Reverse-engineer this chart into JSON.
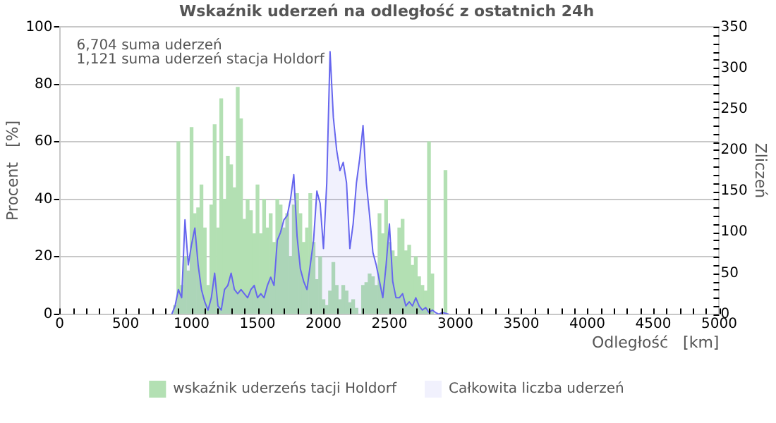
{
  "chart_data": {
    "type": "bar",
    "title": "Wskaźnik uderzeń na odległość z ostatnich 24h",
    "xlabel": "Odległość   [km]",
    "ylabel": "Procent   [%]",
    "y2label": "Zliczeń",
    "annotations": [
      "6,704 suma uderzeń",
      "1,121 suma uderzeń stacja Holdorf"
    ],
    "xlim": [
      0,
      5000
    ],
    "xticks": [
      0,
      {
        "value": 100,
        "label": null
      },
      {
        "value": 200,
        "label": null
      },
      {
        "value": 300,
        "label": null
      },
      {
        "value": 400,
        "label": null
      },
      500,
      {
        "value": 600,
        "label": null
      },
      {
        "value": 700,
        "label": null
      },
      {
        "value": 800,
        "label": null
      },
      {
        "value": 900,
        "label": null
      },
      1000,
      {
        "value": 1100,
        "label": null
      },
      {
        "value": 1200,
        "label": null
      },
      {
        "value": 1300,
        "label": null
      },
      {
        "value": 1400,
        "label": null
      },
      1500,
      {
        "value": 1600,
        "label": null
      },
      {
        "value": 1700,
        "label": null
      },
      {
        "value": 1800,
        "label": null
      },
      {
        "value": 1900,
        "label": null
      },
      2000,
      {
        "value": 2100,
        "label": null
      },
      {
        "value": 2200,
        "label": null
      },
      {
        "value": 2300,
        "label": null
      },
      {
        "value": 2400,
        "label": null
      },
      2500,
      {
        "value": 2600,
        "label": null
      },
      {
        "value": 2700,
        "label": null
      },
      {
        "value": 2800,
        "label": null
      },
      {
        "value": 2900,
        "label": null
      },
      3000,
      {
        "value": 3100,
        "label": null
      },
      {
        "value": 3200,
        "label": null
      },
      {
        "value": 3300,
        "label": null
      },
      {
        "value": 3400,
        "label": null
      },
      3500,
      {
        "value": 3600,
        "label": null
      },
      {
        "value": 3700,
        "label": null
      },
      {
        "value": 3800,
        "label": null
      },
      {
        "value": 3900,
        "label": null
      },
      4000,
      {
        "value": 4100,
        "label": null
      },
      {
        "value": 4200,
        "label": null
      },
      {
        "value": 4300,
        "label": null
      },
      {
        "value": 4400,
        "label": null
      },
      4500,
      {
        "value": 4600,
        "label": null
      },
      {
        "value": 4700,
        "label": null
      },
      {
        "value": 4800,
        "label": null
      },
      {
        "value": 4900,
        "label": null
      },
      5000
    ],
    "ylim": [
      0,
      100
    ],
    "yticks": [
      0,
      20,
      40,
      60,
      80,
      100
    ],
    "y2lim": [
      0,
      350
    ],
    "y2ticks": [
      0,
      {
        "value": 10,
        "label": null
      },
      {
        "value": 20,
        "label": null
      },
      {
        "value": 30,
        "label": null
      },
      {
        "value": 40,
        "label": null
      },
      50,
      {
        "value": 60,
        "label": null
      },
      {
        "value": 70,
        "label": null
      },
      {
        "value": 80,
        "label": null
      },
      {
        "value": 90,
        "label": null
      },
      100,
      {
        "value": 110,
        "label": null
      },
      {
        "value": 120,
        "label": null
      },
      {
        "value": 130,
        "label": null
      },
      {
        "value": 140,
        "label": null
      },
      150,
      {
        "value": 160,
        "label": null
      },
      {
        "value": 170,
        "label": null
      },
      {
        "value": 180,
        "label": null
      },
      {
        "value": 190,
        "label": null
      },
      200,
      {
        "value": 210,
        "label": null
      },
      {
        "value": 220,
        "label": null
      },
      {
        "value": 230,
        "label": null
      },
      {
        "value": 240,
        "label": null
      },
      250,
      {
        "value": 260,
        "label": null
      },
      {
        "value": 270,
        "label": null
      },
      {
        "value": 280,
        "label": null
      },
      {
        "value": 290,
        "label": null
      },
      300,
      {
        "value": 310,
        "label": null
      },
      {
        "value": 320,
        "label": null
      },
      {
        "value": 330,
        "label": null
      },
      {
        "value": 340,
        "label": null
      },
      350
    ],
    "grid": "y",
    "legend": "bottom",
    "series": [
      {
        "name": "wskaźnik uderzeńs tacji Holdorf",
        "color": "#b3e0b3",
        "x": [
          875,
          900,
          925,
          950,
          975,
          1000,
          1025,
          1050,
          1075,
          1100,
          1125,
          1150,
          1175,
          1200,
          1225,
          1250,
          1275,
          1300,
          1325,
          1350,
          1375,
          1400,
          1425,
          1450,
          1475,
          1500,
          1525,
          1550,
          1575,
          1600,
          1625,
          1650,
          1675,
          1700,
          1725,
          1750,
          1775,
          1800,
          1825,
          1850,
          1875,
          1900,
          1925,
          1950,
          1975,
          2000,
          2025,
          2050,
          2075,
          2100,
          2125,
          2150,
          2175,
          2200,
          2225,
          2250,
          2300,
          2325,
          2350,
          2375,
          2400,
          2425,
          2450,
          2475,
          2500,
          2525,
          2550,
          2575,
          2600,
          2625,
          2650,
          2675,
          2700,
          2725,
          2750,
          2775,
          2800,
          2825,
          2925
        ],
        "values": [
          3,
          60,
          10,
          20,
          15,
          65,
          35,
          37,
          45,
          30,
          10,
          38,
          66,
          30,
          75,
          40,
          55,
          52,
          44,
          79,
          68,
          33,
          40,
          36,
          28,
          45,
          28,
          40,
          30,
          35,
          25,
          40,
          38,
          30,
          35,
          20,
          38,
          42,
          35,
          25,
          30,
          42,
          25,
          12,
          20,
          5,
          3,
          8,
          18,
          10,
          5,
          10,
          8,
          4,
          5,
          2,
          10,
          11,
          14,
          13,
          10,
          35,
          28,
          40,
          25,
          22,
          20,
          30,
          33,
          22,
          24,
          17,
          20,
          13,
          10,
          8,
          60,
          14,
          50
        ]
      },
      {
        "name": "Całkowita liczba uderzeń",
        "type": "area",
        "axis": "y2",
        "color": "#6666ee",
        "x": [
          850,
          875,
          900,
          925,
          950,
          975,
          1000,
          1025,
          1050,
          1075,
          1100,
          1125,
          1150,
          1175,
          1200,
          1225,
          1250,
          1275,
          1300,
          1325,
          1350,
          1375,
          1400,
          1425,
          1450,
          1475,
          1500,
          1525,
          1550,
          1575,
          1600,
          1625,
          1650,
          1675,
          1700,
          1725,
          1750,
          1775,
          1800,
          1825,
          1850,
          1875,
          1900,
          1925,
          1950,
          1975,
          2000,
          2025,
          2050,
          2075,
          2100,
          2125,
          2150,
          2175,
          2200,
          2225,
          2250,
          2275,
          2300,
          2325,
          2350,
          2375,
          2400,
          2425,
          2450,
          2475,
          2500,
          2525,
          2550,
          2575,
          2600,
          2625,
          2650,
          2675,
          2700,
          2725,
          2750,
          2775,
          2800,
          2825,
          2850,
          2875,
          2900,
          2950
        ],
        "values": [
          0,
          10,
          30,
          20,
          115,
          60,
          85,
          105,
          60,
          30,
          15,
          5,
          20,
          50,
          10,
          5,
          30,
          35,
          50,
          30,
          25,
          30,
          25,
          20,
          30,
          35,
          20,
          25,
          20,
          35,
          45,
          35,
          90,
          100,
          115,
          120,
          140,
          170,
          95,
          55,
          40,
          30,
          60,
          90,
          150,
          135,
          80,
          160,
          320,
          240,
          200,
          175,
          185,
          160,
          80,
          110,
          160,
          190,
          230,
          160,
          120,
          75,
          60,
          40,
          20,
          60,
          110,
          40,
          20,
          20,
          25,
          10,
          15,
          10,
          20,
          10,
          5,
          8,
          2,
          5,
          2,
          0,
          2,
          0
        ]
      }
    ]
  }
}
